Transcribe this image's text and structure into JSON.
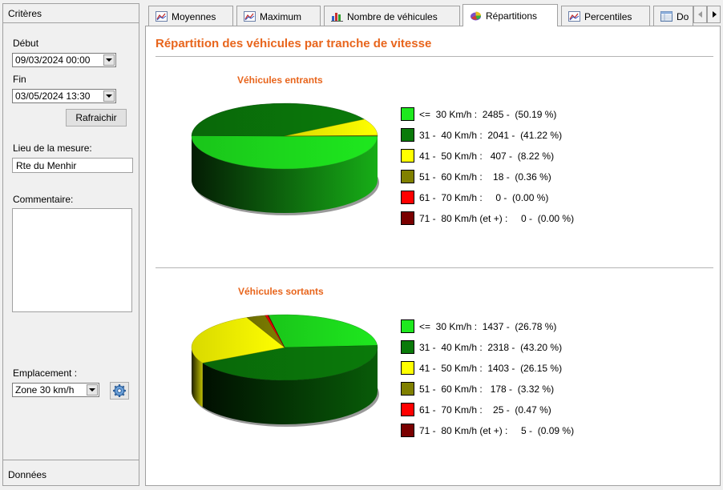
{
  "criteria_panel": {
    "title": "Critères",
    "start_label": "Début",
    "start_value": "09/03/2024 00:00",
    "end_label": "Fin",
    "end_value": "03/05/2024 13:30",
    "refresh_label": "Rafraichir",
    "location_label": "Lieu de la mesure:",
    "location_value": "Rte du Menhir",
    "comment_label": "Commentaire:",
    "comment_value": "",
    "placement_label": "Emplacement :",
    "placement_value": "Zone 30 km/h",
    "footer": "Données"
  },
  "tabs": [
    {
      "label": "Moyennes",
      "icon": "line-chart-icon",
      "active": false
    },
    {
      "label": "Maximum",
      "icon": "line-chart-icon",
      "active": false
    },
    {
      "label": "Nombre de véhicules",
      "icon": "bar-chart-icon",
      "active": false
    },
    {
      "label": "Répartitions",
      "icon": "pie-chart-icon",
      "active": true
    },
    {
      "label": "Percentiles",
      "icon": "line-chart-icon",
      "active": false
    },
    {
      "label": "Do",
      "icon": "table-icon",
      "active": false
    }
  ],
  "content": {
    "title": "Répartition des véhicules par tranche de vitesse"
  },
  "colors": {
    "accent": "#e8651c",
    "cat1": "#1ee81e",
    "cat2": "#0a7a0a",
    "cat3": "#ffff00",
    "cat4": "#808000",
    "cat5": "#ff0000",
    "cat6": "#7a0000"
  },
  "chart_data": [
    {
      "type": "pie",
      "title": "Véhicules entrants",
      "categories": [
        "<=  30 Km/h",
        "31 -  40 Km/h",
        "41 -  50 Km/h",
        "51 -  60 Km/h",
        "61 -  70 Km/h",
        "71 -  80 Km/h (et +)"
      ],
      "values": [
        2485,
        2041,
        407,
        18,
        0,
        0
      ],
      "percents": [
        50.19,
        41.22,
        8.22,
        0.36,
        0.0,
        0.0
      ],
      "legend_lines": [
        "<=  30 Km/h :  2485 -  (50.19 %)",
        "31 -  40 Km/h :  2041 -  (41.22 %)",
        "41 -  50 Km/h :   407 -  (8.22 %)",
        "51 -  60 Km/h :    18 -  (0.36 %)",
        "61 -  70 Km/h :     0 -  (0.00 %)",
        "71 -  80 Km/h (et +) :     0 -  (0.00 %)"
      ],
      "legend": "right"
    },
    {
      "type": "pie",
      "title": "Véhicules sortants",
      "categories": [
        "<=  30 Km/h",
        "31 -  40 Km/h",
        "41 -  50 Km/h",
        "51 -  60 Km/h",
        "61 -  70 Km/h",
        "71 -  80 Km/h (et +)"
      ],
      "values": [
        1437,
        2318,
        1403,
        178,
        25,
        5
      ],
      "percents": [
        26.78,
        43.2,
        26.15,
        3.32,
        0.47,
        0.09
      ],
      "legend_lines": [
        "<=  30 Km/h :  1437 -  (26.78 %)",
        "31 -  40 Km/h :  2318 -  (43.20 %)",
        "41 -  50 Km/h :  1403 -  (26.15 %)",
        "51 -  60 Km/h :   178 -  (3.32 %)",
        "61 -  70 Km/h :    25 -  (0.47 %)",
        "71 -  80 Km/h (et +) :     5 -  (0.09 %)"
      ],
      "legend": "right"
    }
  ]
}
